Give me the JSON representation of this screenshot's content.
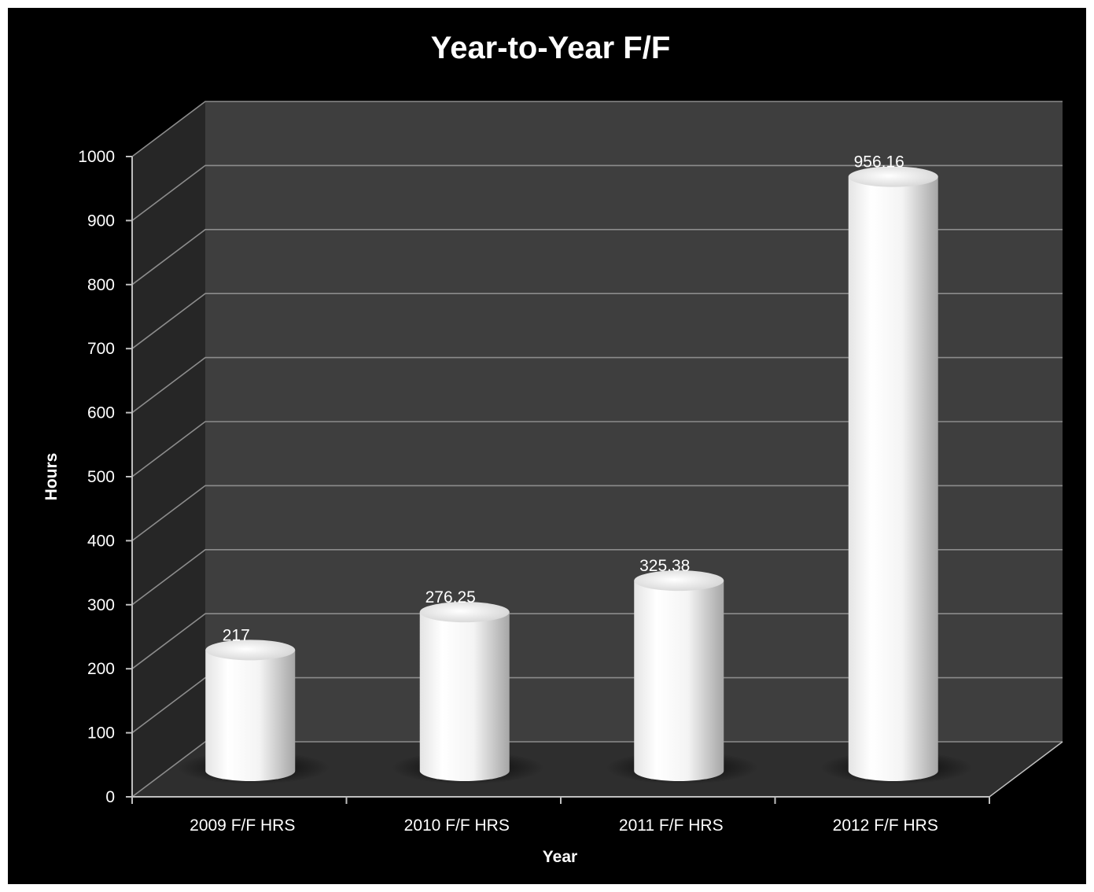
{
  "chart_data": {
    "type": "bar",
    "style": "3d-cylinder",
    "title": "Year-to-Year F/F",
    "xlabel": "Year",
    "ylabel": "Hours",
    "categories": [
      "2009 F/F HRS",
      "2010 F/F HRS",
      "2011 F/F HRS",
      "2012 F/F HRS"
    ],
    "values": [
      217,
      276.25,
      325.38,
      956.16
    ],
    "data_labels": [
      "217",
      "276.25",
      "325.38",
      "956.16"
    ],
    "ylim": [
      0,
      1000
    ],
    "yticks": [
      0,
      100,
      200,
      300,
      400,
      500,
      600,
      700,
      800,
      900,
      1000
    ],
    "grid": true,
    "legend": "none",
    "colors": {
      "background": "#000000",
      "back_wall": "#3e3e3e",
      "side_wall": "#262626",
      "floor": "#2e2e2e",
      "gridline": "#8c8c8c",
      "bar": "#ffffff",
      "text": "#ffffff"
    }
  }
}
